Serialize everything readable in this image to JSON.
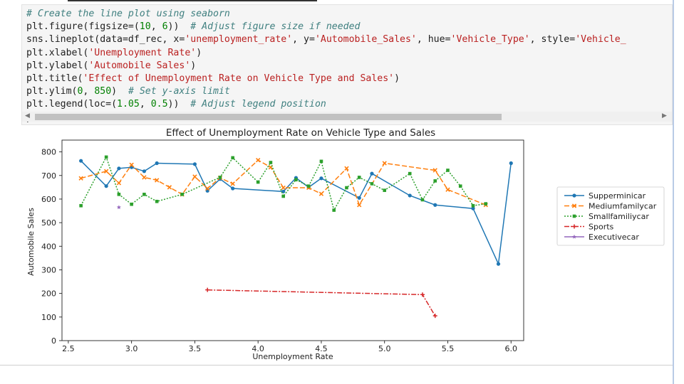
{
  "code_cell": {
    "lines": [
      [
        {
          "t": "# Create the line plot using seaborn",
          "c": "cm"
        }
      ],
      [
        {
          "t": "plt.figure(figsize=(",
          "c": ""
        },
        {
          "t": "10",
          "c": "nu"
        },
        {
          "t": ", ",
          "c": ""
        },
        {
          "t": "6",
          "c": "nu"
        },
        {
          "t": "))  ",
          "c": ""
        },
        {
          "t": "# Adjust figure size if needed",
          "c": "cm"
        }
      ],
      [
        {
          "t": "sns.lineplot(data=df_rec, x=",
          "c": ""
        },
        {
          "t": "'unemployment_rate'",
          "c": "st"
        },
        {
          "t": ", y=",
          "c": ""
        },
        {
          "t": "'Automobile_Sales'",
          "c": "st"
        },
        {
          "t": ", hue=",
          "c": ""
        },
        {
          "t": "'Vehicle_Type'",
          "c": "st"
        },
        {
          "t": ", style=",
          "c": ""
        },
        {
          "t": "'Vehicle_",
          "c": "st"
        }
      ],
      [
        {
          "t": "plt.xlabel(",
          "c": ""
        },
        {
          "t": "'Unemployment Rate'",
          "c": "st"
        },
        {
          "t": ")",
          "c": ""
        }
      ],
      [
        {
          "t": "plt.ylabel(",
          "c": ""
        },
        {
          "t": "'Automobile Sales'",
          "c": "st"
        },
        {
          "t": ")",
          "c": ""
        }
      ],
      [
        {
          "t": "plt.title(",
          "c": ""
        },
        {
          "t": "'Effect of Unemployment Rate on Vehicle Type and Sales'",
          "c": "st"
        },
        {
          "t": ")",
          "c": ""
        }
      ],
      [
        {
          "t": "plt.ylim(",
          "c": ""
        },
        {
          "t": "0",
          "c": "nu"
        },
        {
          "t": ", ",
          "c": ""
        },
        {
          "t": "850",
          "c": "nu"
        },
        {
          "t": ")  ",
          "c": ""
        },
        {
          "t": "# Set y-axis limit",
          "c": "cm"
        }
      ],
      [
        {
          "t": "plt.legend(loc=(",
          "c": ""
        },
        {
          "t": "1.05",
          "c": "nu"
        },
        {
          "t": ", ",
          "c": ""
        },
        {
          "t": "0.5",
          "c": "nu"
        },
        {
          "t": "))  ",
          "c": ""
        },
        {
          "t": "# Adjust legend position",
          "c": "cm"
        }
      ],
      [
        {
          "t": "plt.show()",
          "c": ""
        }
      ]
    ]
  },
  "scroll_arrows": {
    "left": "◀",
    "right": "▶"
  },
  "chart_data": {
    "type": "line",
    "title": "Effect of Unemployment Rate on Vehicle Type and Sales",
    "xlabel": "Unemployment Rate",
    "ylabel": "Automobile Sales",
    "xlim": [
      2.45,
      6.1
    ],
    "ylim": [
      0,
      850
    ],
    "xticks": [
      2.5,
      3.0,
      3.5,
      4.0,
      4.5,
      5.0,
      5.5,
      6.0
    ],
    "xtick_labels": [
      "2.5",
      "3.0",
      "3.5",
      "4.0",
      "4.5",
      "5.0",
      "5.5",
      "6.0"
    ],
    "yticks": [
      0,
      100,
      200,
      300,
      400,
      500,
      600,
      700,
      800
    ],
    "ytick_labels": [
      "0",
      "100",
      "200",
      "300",
      "400",
      "500",
      "600",
      "700",
      "800"
    ],
    "grid": false,
    "legend_position": "outside-right",
    "series": [
      {
        "name": "Supperminicar",
        "color": "#1f77b4",
        "dash": "",
        "marker": "circle",
        "points": [
          [
            2.6,
            762
          ],
          [
            2.8,
            655
          ],
          [
            2.9,
            730
          ],
          [
            3.0,
            735
          ],
          [
            3.1,
            718
          ],
          [
            3.2,
            752
          ],
          [
            3.5,
            748
          ],
          [
            3.6,
            635
          ],
          [
            3.7,
            685
          ],
          [
            3.8,
            645
          ],
          [
            4.2,
            632
          ],
          [
            4.3,
            690
          ],
          [
            4.4,
            650
          ],
          [
            4.5,
            688
          ],
          [
            4.8,
            605
          ],
          [
            4.9,
            708
          ],
          [
            5.2,
            615
          ],
          [
            5.4,
            575
          ],
          [
            5.7,
            560
          ],
          [
            5.9,
            325
          ],
          [
            6.0,
            752
          ]
        ]
      },
      {
        "name": "Mediumfamilycar",
        "color": "#ff7f0e",
        "dash": "7,3",
        "marker": "x",
        "points": [
          [
            2.6,
            688
          ],
          [
            2.8,
            718
          ],
          [
            2.9,
            668
          ],
          [
            3.0,
            745
          ],
          [
            3.1,
            692
          ],
          [
            3.2,
            680
          ],
          [
            3.3,
            650
          ],
          [
            3.4,
            620
          ],
          [
            3.5,
            695
          ],
          [
            3.6,
            645
          ],
          [
            3.7,
            690
          ],
          [
            3.8,
            665
          ],
          [
            4.0,
            765
          ],
          [
            4.1,
            735
          ],
          [
            4.2,
            648
          ],
          [
            4.4,
            648
          ],
          [
            4.5,
            622
          ],
          [
            4.7,
            730
          ],
          [
            4.8,
            575
          ],
          [
            5.0,
            752
          ],
          [
            5.4,
            722
          ],
          [
            5.5,
            640
          ],
          [
            5.8,
            575
          ]
        ]
      },
      {
        "name": "Smallfamiliycar",
        "color": "#2ca02c",
        "dash": "2,2",
        "marker": "square",
        "points": [
          [
            2.6,
            572
          ],
          [
            2.8,
            778
          ],
          [
            2.9,
            620
          ],
          [
            3.0,
            578
          ],
          [
            3.1,
            620
          ],
          [
            3.2,
            590
          ],
          [
            3.4,
            620
          ],
          [
            3.7,
            692
          ],
          [
            3.8,
            775
          ],
          [
            4.0,
            672
          ],
          [
            4.1,
            755
          ],
          [
            4.2,
            612
          ],
          [
            4.3,
            682
          ],
          [
            4.4,
            655
          ],
          [
            4.5,
            760
          ],
          [
            4.6,
            553
          ],
          [
            4.7,
            648
          ],
          [
            4.8,
            692
          ],
          [
            4.9,
            665
          ],
          [
            5.0,
            637
          ],
          [
            5.2,
            708
          ],
          [
            5.3,
            597
          ],
          [
            5.4,
            677
          ],
          [
            5.5,
            722
          ],
          [
            5.6,
            655
          ],
          [
            5.7,
            572
          ],
          [
            5.8,
            580
          ]
        ]
      },
      {
        "name": "Sports",
        "color": "#d62728",
        "dash": "7,2,2,2",
        "marker": "plus",
        "points": [
          [
            3.6,
            215
          ],
          [
            5.3,
            195
          ],
          [
            5.4,
            105
          ]
        ]
      },
      {
        "name": "Executivecar",
        "color": "#9467bd",
        "dash": "",
        "marker": "star",
        "points": [
          [
            2.9,
            565
          ]
        ]
      }
    ]
  }
}
